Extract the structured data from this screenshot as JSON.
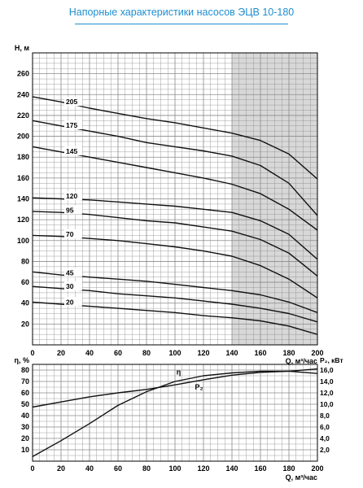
{
  "title": "Напорные характеристики насосов ЭЦВ 10-180",
  "colors": {
    "title": "#1e8fd0",
    "grid": "#8a8a8a",
    "curve": "#111111",
    "shade": "#d8d8d8"
  },
  "chart_data": [
    {
      "type": "line",
      "title": "",
      "ylabel": "H, м",
      "xlabel": "Q, м³/час",
      "xlim": [
        0,
        200
      ],
      "ylim": [
        0,
        280
      ],
      "x_ticks": [
        0,
        20,
        40,
        60,
        80,
        100,
        120,
        140,
        160,
        180,
        200
      ],
      "y_ticks": [
        20,
        40,
        60,
        80,
        100,
        120,
        140,
        160,
        180,
        200,
        220,
        240,
        260
      ],
      "grid": true,
      "shaded_region_x": [
        140,
        200
      ],
      "x": [
        0,
        20,
        40,
        60,
        80,
        100,
        120,
        140,
        160,
        180,
        200
      ],
      "series": [
        {
          "name": "205",
          "values": [
            238,
            233,
            227,
            222,
            217,
            213,
            208,
            203,
            196,
            183,
            159
          ]
        },
        {
          "name": "175",
          "values": [
            215,
            210,
            205,
            200,
            194,
            190,
            186,
            181,
            172,
            155,
            124
          ]
        },
        {
          "name": "145",
          "values": [
            190,
            185,
            180,
            175,
            170,
            165,
            160,
            154,
            145,
            130,
            110
          ]
        },
        {
          "name": "120",
          "values": [
            141,
            140,
            139,
            137,
            135,
            133,
            130,
            127,
            119,
            106,
            82
          ]
        },
        {
          "name": "95",
          "values": [
            128,
            127,
            125,
            122,
            119,
            117,
            113,
            109,
            101,
            88,
            66
          ]
        },
        {
          "name": "70",
          "values": [
            105,
            104,
            102,
            100,
            97,
            94,
            90,
            85,
            76,
            63,
            45
          ]
        },
        {
          "name": "45",
          "values": [
            70,
            67,
            65,
            63,
            61,
            58,
            55,
            52,
            48,
            41,
            31
          ]
        },
        {
          "name": "30",
          "values": [
            56,
            54,
            52,
            49,
            47,
            45,
            42,
            39,
            35,
            30,
            22
          ]
        },
        {
          "name": "20",
          "values": [
            41,
            39,
            37,
            35,
            33,
            31,
            28,
            26,
            23,
            18,
            10
          ]
        }
      ]
    },
    {
      "type": "line",
      "title": "",
      "ylabel": "η, %",
      "ylabel_right": "P₂, кВт",
      "xlabel": "Q, м³/час",
      "xlim": [
        0,
        200
      ],
      "ylim": [
        0,
        85
      ],
      "ylim_right": [
        0,
        17
      ],
      "x_ticks": [
        0,
        20,
        40,
        60,
        80,
        100,
        120,
        140,
        160,
        180,
        200
      ],
      "y_ticks": [
        10,
        20,
        30,
        40,
        50,
        60,
        70,
        80
      ],
      "y_ticks_right": [
        "2,0",
        "4,0",
        "6,0",
        "8,0",
        "10,0",
        "12,0",
        "14,0",
        "16,0"
      ],
      "grid": true,
      "x": [
        0,
        20,
        40,
        60,
        80,
        100,
        120,
        140,
        160,
        180,
        200
      ],
      "series": [
        {
          "name": "η",
          "axis": "left",
          "values": [
            4,
            18,
            33,
            49,
            61,
            70,
            75,
            77.5,
            79,
            79,
            77
          ]
        },
        {
          "name": "P₂",
          "axis": "right",
          "values": [
            9.5,
            10.4,
            11.3,
            12.0,
            12.6,
            13.4,
            14.3,
            15.1,
            15.6,
            15.8,
            16.2
          ]
        }
      ]
    }
  ]
}
